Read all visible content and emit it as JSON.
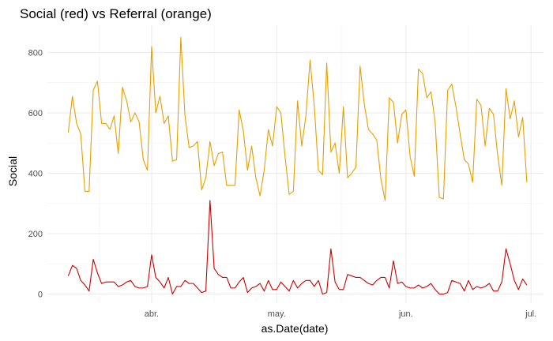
{
  "chart_data": {
    "type": "line",
    "title": "Social (red) vs Referral (orange)",
    "xlabel": "as.Date(date)",
    "ylabel": "Social",
    "xlim": [
      "2013-03-07",
      "2013-07-04"
    ],
    "ylim": [
      -30,
      890
    ],
    "x_ticks": [
      {
        "date": "2013-04-01",
        "label": "abr."
      },
      {
        "date": "2013-05-01",
        "label": "may."
      },
      {
        "date": "2013-06-01",
        "label": "jun."
      },
      {
        "date": "2013-07-01",
        "label": "jul."
      }
    ],
    "y_ticks": [
      0,
      200,
      400,
      600,
      800
    ],
    "x_start": "2013-03-12",
    "grid": true,
    "legend": "none",
    "series": [
      {
        "color": "#E69F00",
        "values": [
          535,
          655,
          565,
          530,
          340,
          340,
          675,
          705,
          565,
          565,
          545,
          590,
          465,
          685,
          640,
          570,
          600,
          570,
          445,
          410,
          820,
          600,
          655,
          565,
          590,
          440,
          445,
          850,
          590,
          485,
          490,
          505,
          345,
          385,
          505,
          425,
          465,
          470,
          360,
          360,
          360,
          610,
          540,
          410,
          490,
          385,
          325,
          410,
          545,
          490,
          620,
          600,
          455,
          330,
          340,
          640,
          490,
          590,
          775,
          625,
          410,
          395,
          765,
          470,
          500,
          400,
          620,
          385,
          400,
          420,
          755,
          630,
          545,
          530,
          510,
          380,
          310,
          650,
          635,
          500,
          595,
          610,
          455,
          390,
          745,
          730,
          650,
          670,
          570,
          320,
          315,
          675,
          695,
          620,
          530,
          445,
          430,
          370,
          645,
          625,
          490,
          615,
          595,
          460,
          360,
          680,
          580,
          640,
          520,
          585,
          370
        ]
      },
      {
        "color": "#CC0000",
        "values": [
          60,
          95,
          85,
          45,
          30,
          10,
          115,
          70,
          35,
          40,
          40,
          40,
          25,
          30,
          40,
          45,
          25,
          20,
          20,
          25,
          130,
          55,
          40,
          20,
          55,
          0,
          25,
          25,
          45,
          35,
          35,
          20,
          5,
          10,
          310,
          85,
          65,
          55,
          55,
          20,
          20,
          40,
          55,
          5,
          20,
          25,
          35,
          10,
          45,
          15,
          15,
          40,
          25,
          10,
          45,
          20,
          35,
          45,
          45,
          25,
          45,
          0,
          5,
          150,
          40,
          15,
          15,
          65,
          60,
          55,
          55,
          45,
          35,
          30,
          45,
          55,
          55,
          20,
          110,
          35,
          40,
          25,
          20,
          20,
          30,
          20,
          25,
          35,
          15,
          0,
          0,
          5,
          45,
          40,
          35,
          10,
          45,
          15,
          25,
          20,
          25,
          35,
          10,
          10,
          40,
          150,
          100,
          45,
          15,
          50,
          30
        ]
      }
    ]
  }
}
